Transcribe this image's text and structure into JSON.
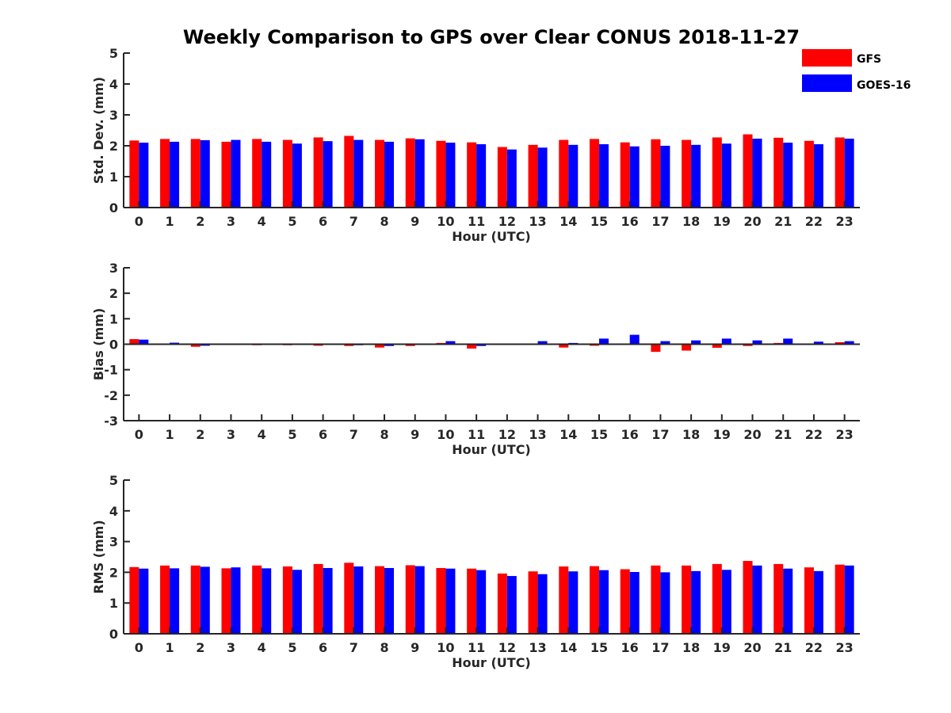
{
  "figure": {
    "title": "Weekly Comparison to GPS over Clear CONUS 2018-11-27"
  },
  "legend": {
    "placement": "top-right",
    "entries": [
      {
        "name": "GFS",
        "color": "#ff0000"
      },
      {
        "name": "GOES-16",
        "color": "#0000ff"
      }
    ]
  },
  "chart_data": [
    {
      "type": "bar",
      "title": "Weekly Comparison to GPS over Clear CONUS 2018-11-27",
      "xlabel": "Hour (UTC)",
      "ylabel": "Std. Dev. (mm)",
      "ylim": [
        0,
        5
      ],
      "yticks": [
        0,
        1,
        2,
        3,
        4,
        5
      ],
      "categories": [
        "0",
        "1",
        "2",
        "3",
        "4",
        "5",
        "6",
        "7",
        "8",
        "9",
        "10",
        "11",
        "12",
        "13",
        "14",
        "15",
        "16",
        "17",
        "18",
        "19",
        "20",
        "21",
        "22",
        "23"
      ],
      "series": [
        {
          "name": "GFS",
          "color": "#ff0000",
          "values": [
            2.17,
            2.22,
            2.22,
            2.13,
            2.22,
            2.19,
            2.27,
            2.32,
            2.19,
            2.24,
            2.16,
            2.11,
            1.96,
            2.03,
            2.19,
            2.22,
            2.11,
            2.21,
            2.19,
            2.27,
            2.37,
            2.26,
            2.16,
            2.27
          ]
        },
        {
          "name": "GOES-16",
          "color": "#0000ff",
          "values": [
            2.1,
            2.13,
            2.18,
            2.19,
            2.13,
            2.07,
            2.15,
            2.19,
            2.13,
            2.21,
            2.1,
            2.05,
            1.88,
            1.94,
            2.03,
            2.05,
            1.98,
            2.0,
            2.03,
            2.07,
            2.23,
            2.1,
            2.05,
            2.23
          ]
        }
      ]
    },
    {
      "type": "bar",
      "xlabel": "Hour (UTC)",
      "ylabel": "Bias (mm)",
      "ylim": [
        -3,
        3
      ],
      "yticks": [
        -3,
        -2,
        -1,
        0,
        1,
        2,
        3
      ],
      "categories": [
        "0",
        "1",
        "2",
        "3",
        "4",
        "5",
        "6",
        "7",
        "8",
        "9",
        "10",
        "11",
        "12",
        "13",
        "14",
        "15",
        "16",
        "17",
        "18",
        "19",
        "20",
        "21",
        "22",
        "23"
      ],
      "series": [
        {
          "name": "GFS",
          "color": "#ff0000",
          "values": [
            0.2,
            0.03,
            -0.1,
            -0.02,
            -0.04,
            -0.04,
            -0.06,
            -0.07,
            -0.13,
            -0.07,
            0.05,
            -0.17,
            -0.03,
            -0.01,
            -0.13,
            -0.06,
            -0.03,
            -0.3,
            -0.25,
            -0.14,
            -0.07,
            0.05,
            -0.01,
            0.08
          ]
        },
        {
          "name": "GOES-16",
          "color": "#0000ff",
          "values": [
            0.18,
            0.06,
            -0.06,
            0.02,
            -0.01,
            -0.01,
            -0.01,
            -0.04,
            -0.07,
            -0.02,
            0.12,
            -0.07,
            0.03,
            0.12,
            0.05,
            0.22,
            0.37,
            0.12,
            0.15,
            0.22,
            0.15,
            0.22,
            0.1,
            0.12
          ]
        }
      ]
    },
    {
      "type": "bar",
      "xlabel": "Hour (UTC)",
      "ylabel": "RMS (mm)",
      "ylim": [
        0,
        5
      ],
      "yticks": [
        0,
        1,
        2,
        3,
        4,
        5
      ],
      "categories": [
        "0",
        "1",
        "2",
        "3",
        "4",
        "5",
        "6",
        "7",
        "8",
        "9",
        "10",
        "11",
        "12",
        "13",
        "14",
        "15",
        "16",
        "17",
        "18",
        "19",
        "20",
        "21",
        "22",
        "23"
      ],
      "series": [
        {
          "name": "GFS",
          "color": "#ff0000",
          "values": [
            2.17,
            2.22,
            2.22,
            2.13,
            2.22,
            2.19,
            2.27,
            2.31,
            2.2,
            2.23,
            2.14,
            2.12,
            1.96,
            2.03,
            2.19,
            2.2,
            2.1,
            2.22,
            2.22,
            2.27,
            2.37,
            2.27,
            2.16,
            2.25
          ]
        },
        {
          "name": "GOES-16",
          "color": "#0000ff",
          "values": [
            2.12,
            2.13,
            2.18,
            2.16,
            2.13,
            2.08,
            2.14,
            2.19,
            2.14,
            2.2,
            2.12,
            2.07,
            1.88,
            1.94,
            2.03,
            2.07,
            2.01,
            2.0,
            2.04,
            2.08,
            2.22,
            2.12,
            2.04,
            2.22
          ]
        }
      ]
    }
  ]
}
